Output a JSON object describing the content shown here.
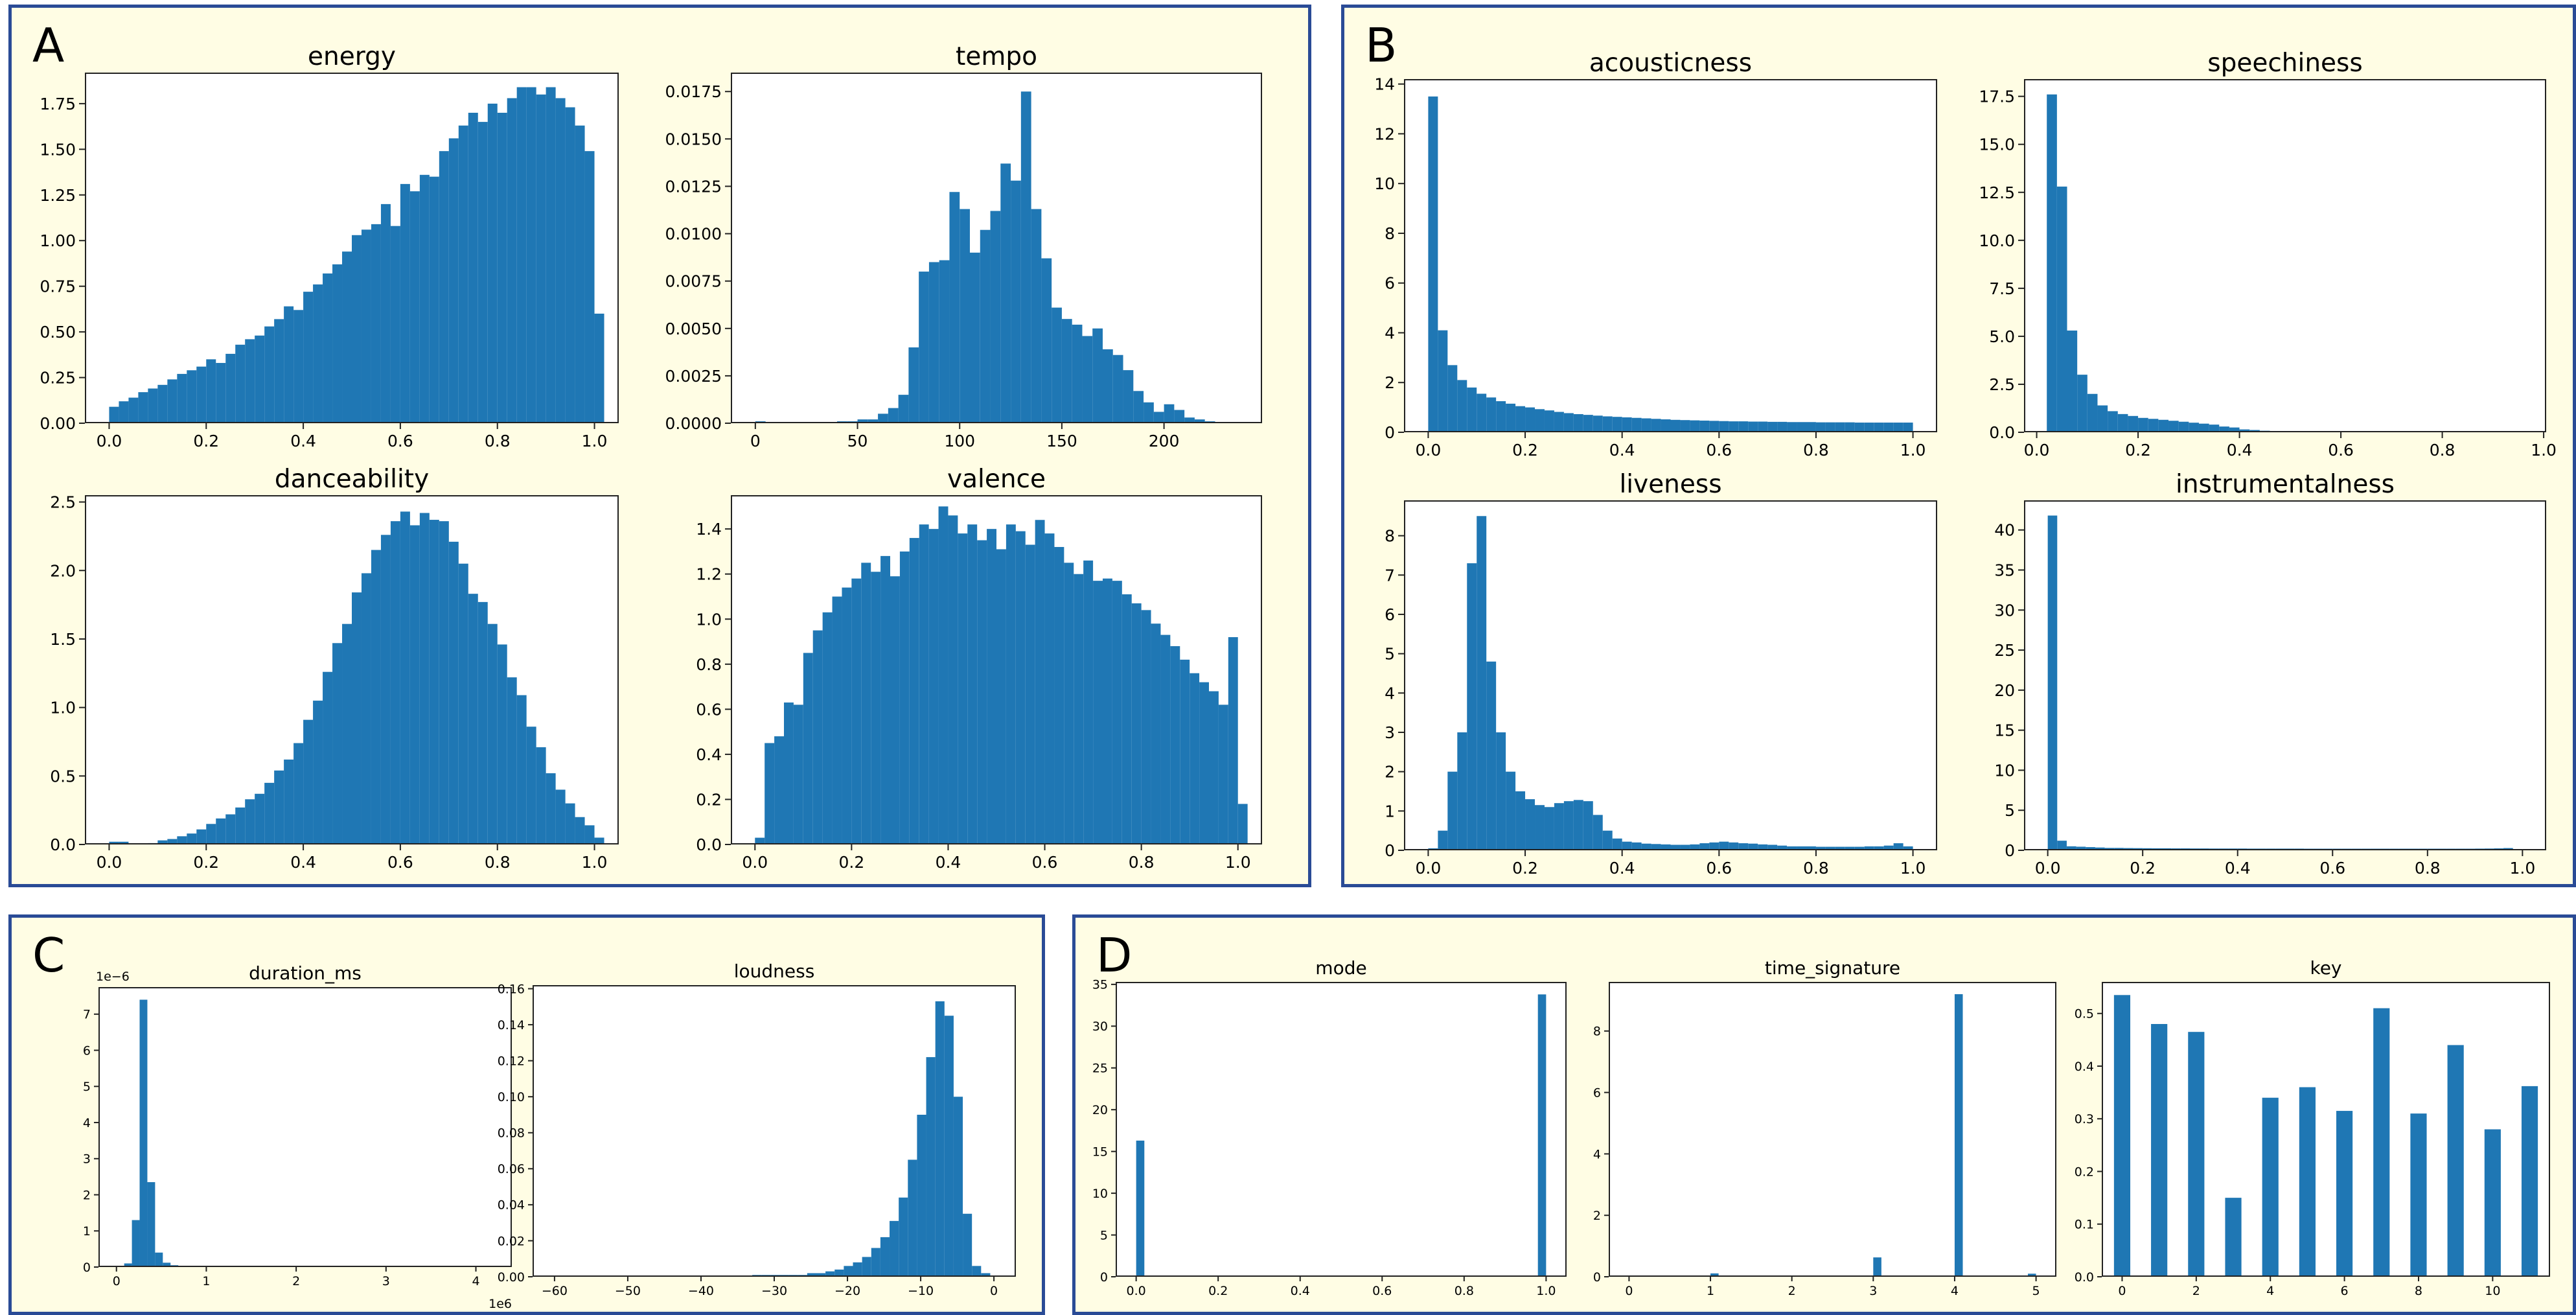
{
  "colors": {
    "bar": "#1f77b4",
    "panel_bg": "#fffde4",
    "panel_border": "#2a4b96"
  },
  "panels": [
    {
      "id": "A",
      "label": "A"
    },
    {
      "id": "B",
      "label": "B"
    },
    {
      "id": "C",
      "label": "C"
    },
    {
      "id": "D",
      "label": "D"
    }
  ],
  "chart_data": [
    {
      "panel": "A",
      "type": "bar",
      "title": "energy",
      "xlim": [
        -0.05,
        1.05
      ],
      "ylim": [
        0,
        1.92
      ],
      "xticks": [
        0.0,
        0.2,
        0.4,
        0.6,
        0.8,
        1.0
      ],
      "xtick_labels": [
        "0.0",
        "0.2",
        "0.4",
        "0.6",
        "0.8",
        "1.0"
      ],
      "yticks": [
        0,
        0.25,
        0.5,
        0.75,
        1.0,
        1.25,
        1.5,
        1.75
      ],
      "ytick_labels": [
        "0.00",
        "0.25",
        "0.50",
        "0.75",
        "1.00",
        "1.25",
        "1.50",
        "1.75"
      ],
      "bin_start": 0.0,
      "bin_width": 0.02,
      "values": [
        0.09,
        0.12,
        0.14,
        0.17,
        0.19,
        0.21,
        0.24,
        0.27,
        0.29,
        0.31,
        0.35,
        0.33,
        0.38,
        0.43,
        0.46,
        0.48,
        0.53,
        0.57,
        0.64,
        0.62,
        0.72,
        0.76,
        0.82,
        0.87,
        0.94,
        1.03,
        1.06,
        1.09,
        1.2,
        1.08,
        1.31,
        1.27,
        1.36,
        1.35,
        1.49,
        1.56,
        1.63,
        1.7,
        1.65,
        1.75,
        1.7,
        1.78,
        1.84,
        1.84,
        1.8,
        1.84,
        1.78,
        1.73,
        1.63,
        1.49,
        0.6
      ]
    },
    {
      "panel": "A",
      "type": "bar",
      "title": "tempo",
      "xlim": [
        -12,
        248
      ],
      "ylim": [
        0,
        0.0185
      ],
      "xticks": [
        0,
        50,
        100,
        150,
        200
      ],
      "xtick_labels": [
        "0",
        "50",
        "100",
        "150",
        "200"
      ],
      "yticks": [
        0,
        0.0025,
        0.005,
        0.0075,
        0.01,
        0.0125,
        0.015,
        0.0175
      ],
      "ytick_labels": [
        "0.0000",
        "0.0025",
        "0.0050",
        "0.0075",
        "0.0100",
        "0.0125",
        "0.0150",
        "0.0175"
      ],
      "bin_start": 0,
      "bin_width": 5,
      "values": [
        0.0001,
        0,
        0,
        0,
        0,
        0,
        0,
        0,
        0.0001,
        0.0001,
        0.0002,
        0.0002,
        0.0005,
        0.0008,
        0.0015,
        0.004,
        0.008,
        0.0085,
        0.0086,
        0.0122,
        0.0113,
        0.009,
        0.0102,
        0.0112,
        0.0137,
        0.0128,
        0.0175,
        0.0113,
        0.0087,
        0.0061,
        0.0055,
        0.0052,
        0.0046,
        0.005,
        0.0039,
        0.0036,
        0.0028,
        0.0017,
        0.0011,
        0.0006,
        0.001,
        0.0007,
        0.0003,
        0.0002,
        0.0001
      ]
    },
    {
      "panel": "A",
      "type": "bar",
      "title": "danceability",
      "xlim": [
        -0.05,
        1.05
      ],
      "ylim": [
        0,
        2.55
      ],
      "xticks": [
        0.0,
        0.2,
        0.4,
        0.6,
        0.8,
        1.0
      ],
      "xtick_labels": [
        "0.0",
        "0.2",
        "0.4",
        "0.6",
        "0.8",
        "1.0"
      ],
      "yticks": [
        0,
        0.5,
        1.0,
        1.5,
        2.0,
        2.5
      ],
      "ytick_labels": [
        "0.0",
        "0.5",
        "1.0",
        "1.5",
        "2.0",
        "2.5"
      ],
      "bin_start": 0.0,
      "bin_width": 0.02,
      "values": [
        0.02,
        0.02,
        0,
        0,
        0.01,
        0.03,
        0.04,
        0.06,
        0.08,
        0.11,
        0.15,
        0.19,
        0.22,
        0.27,
        0.33,
        0.37,
        0.45,
        0.54,
        0.62,
        0.74,
        0.91,
        1.05,
        1.26,
        1.47,
        1.61,
        1.84,
        1.98,
        2.15,
        2.26,
        2.36,
        2.43,
        2.33,
        2.42,
        2.37,
        2.36,
        2.21,
        2.05,
        1.83,
        1.77,
        1.61,
        1.46,
        1.22,
        1.09,
        0.86,
        0.71,
        0.52,
        0.4,
        0.3,
        0.2,
        0.14,
        0.05
      ]
    },
    {
      "panel": "A",
      "type": "bar",
      "title": "valence",
      "xlim": [
        -0.05,
        1.05
      ],
      "ylim": [
        0,
        1.55
      ],
      "xticks": [
        0.0,
        0.2,
        0.4,
        0.6,
        0.8,
        1.0
      ],
      "xtick_labels": [
        "0.0",
        "0.2",
        "0.4",
        "0.6",
        "0.8",
        "1.0"
      ],
      "yticks": [
        0,
        0.2,
        0.4,
        0.6,
        0.8,
        1.0,
        1.2,
        1.4
      ],
      "ytick_labels": [
        "0.0",
        "0.2",
        "0.4",
        "0.6",
        "0.8",
        "1.0",
        "1.2",
        "1.4"
      ],
      "bin_start": 0.0,
      "bin_width": 0.02,
      "values": [
        0.03,
        0.45,
        0.48,
        0.63,
        0.62,
        0.85,
        0.95,
        1.03,
        1.1,
        1.14,
        1.18,
        1.25,
        1.21,
        1.28,
        1.19,
        1.3,
        1.36,
        1.42,
        1.4,
        1.5,
        1.46,
        1.38,
        1.42,
        1.35,
        1.4,
        1.31,
        1.42,
        1.39,
        1.33,
        1.44,
        1.38,
        1.32,
        1.25,
        1.2,
        1.26,
        1.17,
        1.18,
        1.17,
        1.11,
        1.07,
        1.04,
        0.98,
        0.93,
        0.88,
        0.82,
        0.76,
        0.72,
        0.68,
        0.62,
        0.92,
        0.18
      ]
    },
    {
      "panel": "B",
      "type": "bar",
      "title": "acousticness",
      "xlim": [
        -0.05,
        1.05
      ],
      "ylim": [
        0,
        14.2
      ],
      "xticks": [
        0.0,
        0.2,
        0.4,
        0.6,
        0.8,
        1.0
      ],
      "xtick_labels": [
        "0.0",
        "0.2",
        "0.4",
        "0.6",
        "0.8",
        "1.0"
      ],
      "yticks": [
        0,
        2,
        4,
        6,
        8,
        10,
        12,
        14
      ],
      "ytick_labels": [
        "0",
        "2",
        "4",
        "6",
        "8",
        "10",
        "12",
        "14"
      ],
      "bin_start": 0.0,
      "bin_width": 0.02,
      "values": [
        13.5,
        4.1,
        2.7,
        2.1,
        1.8,
        1.55,
        1.4,
        1.25,
        1.15,
        1.05,
        1.0,
        0.93,
        0.88,
        0.82,
        0.77,
        0.73,
        0.7,
        0.67,
        0.64,
        0.62,
        0.6,
        0.58,
        0.56,
        0.54,
        0.52,
        0.5,
        0.49,
        0.48,
        0.47,
        0.46,
        0.45,
        0.44,
        0.44,
        0.43,
        0.43,
        0.42,
        0.42,
        0.41,
        0.41,
        0.41,
        0.4,
        0.4,
        0.4,
        0.4,
        0.39,
        0.39,
        0.39,
        0.39,
        0.39,
        0.39
      ]
    },
    {
      "panel": "B",
      "type": "bar",
      "title": "speechiness",
      "xlim": [
        -0.025,
        1.005
      ],
      "ylim": [
        0,
        18.4
      ],
      "xticks": [
        0.0,
        0.2,
        0.4,
        0.6,
        0.8,
        1.0
      ],
      "xtick_labels": [
        "0.0",
        "0.2",
        "0.4",
        "0.6",
        "0.8",
        "1.0"
      ],
      "yticks": [
        0,
        2.5,
        5.0,
        7.5,
        10.0,
        12.5,
        15.0,
        17.5
      ],
      "ytick_labels": [
        "0.0",
        "2.5",
        "5.0",
        "7.5",
        "10.0",
        "12.5",
        "15.0",
        "17.5"
      ],
      "bin_start": 0.02,
      "bin_width": 0.02,
      "values": [
        17.6,
        12.8,
        5.3,
        3.0,
        2.0,
        1.4,
        1.1,
        0.95,
        0.85,
        0.75,
        0.7,
        0.65,
        0.6,
        0.55,
        0.5,
        0.45,
        0.4,
        0.3,
        0.25,
        0.15,
        0.12,
        0.08,
        0.06,
        0.04,
        0.03,
        0.02,
        0.02,
        0.02,
        0.01,
        0.01,
        0.01,
        0.01,
        0.01,
        0.01,
        0.01,
        0.01,
        0.01,
        0.01,
        0.01,
        0.01,
        0.01,
        0.01,
        0.01,
        0.01,
        0.01,
        0.01,
        0.01,
        0.01,
        0.01
      ]
    },
    {
      "panel": "B",
      "type": "bar",
      "title": "liveness",
      "xlim": [
        -0.05,
        1.05
      ],
      "ylim": [
        0,
        8.9
      ],
      "xticks": [
        0.0,
        0.2,
        0.4,
        0.6,
        0.8,
        1.0
      ],
      "xtick_labels": [
        "0.0",
        "0.2",
        "0.4",
        "0.6",
        "0.8",
        "1.0"
      ],
      "yticks": [
        0,
        1,
        2,
        3,
        4,
        5,
        6,
        7,
        8
      ],
      "ytick_labels": [
        "0",
        "1",
        "2",
        "3",
        "4",
        "5",
        "6",
        "7",
        "8"
      ],
      "bin_start": 0.0,
      "bin_width": 0.02,
      "values": [
        0.05,
        0.5,
        2.0,
        3.0,
        7.3,
        8.5,
        4.8,
        3.0,
        2.0,
        1.5,
        1.3,
        1.15,
        1.1,
        1.2,
        1.25,
        1.28,
        1.25,
        0.9,
        0.5,
        0.3,
        0.22,
        0.2,
        0.17,
        0.16,
        0.15,
        0.14,
        0.14,
        0.15,
        0.18,
        0.2,
        0.22,
        0.2,
        0.18,
        0.17,
        0.15,
        0.14,
        0.12,
        0.1,
        0.1,
        0.1,
        0.09,
        0.09,
        0.09,
        0.09,
        0.09,
        0.1,
        0.1,
        0.12,
        0.18,
        0.1
      ]
    },
    {
      "panel": "B",
      "type": "bar",
      "title": "instrumentalness",
      "xlim": [
        -0.05,
        1.05
      ],
      "ylim": [
        0,
        43.7
      ],
      "xticks": [
        0.0,
        0.2,
        0.4,
        0.6,
        0.8,
        1.0
      ],
      "xtick_labels": [
        "0.0",
        "0.2",
        "0.4",
        "0.6",
        "0.8",
        "1.0"
      ],
      "yticks": [
        0,
        5,
        10,
        15,
        20,
        25,
        30,
        35,
        40
      ],
      "ytick_labels": [
        "0",
        "5",
        "10",
        "15",
        "20",
        "25",
        "30",
        "35",
        "40"
      ],
      "bin_start": 0.0,
      "bin_width": 0.02,
      "values": [
        41.8,
        1.2,
        0.5,
        0.45,
        0.4,
        0.35,
        0.3,
        0.3,
        0.28,
        0.27,
        0.26,
        0.25,
        0.25,
        0.24,
        0.24,
        0.23,
        0.23,
        0.22,
        0.22,
        0.22,
        0.22,
        0.21,
        0.21,
        0.21,
        0.21,
        0.21,
        0.21,
        0.2,
        0.2,
        0.2,
        0.2,
        0.2,
        0.2,
        0.2,
        0.2,
        0.2,
        0.2,
        0.2,
        0.2,
        0.2,
        0.2,
        0.2,
        0.2,
        0.2,
        0.2,
        0.21,
        0.22,
        0.24,
        0.28
      ]
    },
    {
      "panel": "C",
      "type": "bar",
      "title": "duration_ms",
      "xlim": [
        -0.2,
        4.4
      ],
      "ylim": [
        0,
        7.75
      ],
      "xticks": [
        0,
        1,
        2,
        3,
        4
      ],
      "xtick_labels": [
        "0",
        "1",
        "2",
        "3",
        "4"
      ],
      "yticks": [
        0,
        1,
        2,
        3,
        4,
        5,
        6,
        7
      ],
      "ytick_labels": [
        "0",
        "1",
        "2",
        "3",
        "4",
        "5",
        "6",
        "7"
      ],
      "x_multiplier": "1e6",
      "y_multiplier": "1e−6",
      "bin_start": 0.0,
      "bin_width": 0.086,
      "values": [
        0.03,
        0.1,
        1.3,
        7.4,
        2.35,
        0.4,
        0.12,
        0.05,
        0.03,
        0.02,
        0.01,
        0.01,
        0.01,
        0.01,
        0.01
      ]
    },
    {
      "panel": "C",
      "type": "bar",
      "title": "loudness",
      "xlim": [
        -63,
        3
      ],
      "ylim": [
        0,
        0.162
      ],
      "xticks": [
        -60,
        -50,
        -40,
        -30,
        -20,
        -10,
        0
      ],
      "xtick_labels": [
        "−60",
        "−50",
        "−40",
        "−30",
        "−20",
        "−10",
        "0"
      ],
      "yticks": [
        0,
        0.02,
        0.04,
        0.06,
        0.08,
        0.1,
        0.12,
        0.14,
        0.16
      ],
      "ytick_labels": [
        "0.00",
        "0.02",
        "0.04",
        "0.06",
        "0.08",
        "0.10",
        "0.12",
        "0.14",
        "0.16"
      ],
      "bin_start": -33,
      "bin_width": 1.25,
      "values": [
        0.001,
        0.001,
        0.001,
        0.001,
        0.001,
        0.001,
        0.002,
        0.002,
        0.003,
        0.004,
        0.006,
        0.008,
        0.011,
        0.016,
        0.022,
        0.031,
        0.044,
        0.065,
        0.09,
        0.122,
        0.153,
        0.145,
        0.1,
        0.035,
        0.006,
        0.002
      ]
    },
    {
      "panel": "D",
      "type": "bar",
      "title": "mode",
      "xlim": [
        -0.05,
        1.05
      ],
      "ylim": [
        0,
        35.3
      ],
      "xticks": [
        0.0,
        0.2,
        0.4,
        0.6,
        0.8,
        1.0
      ],
      "xtick_labels": [
        "0.0",
        "0.2",
        "0.4",
        "0.6",
        "0.8",
        "1.0"
      ],
      "yticks": [
        0,
        5,
        10,
        15,
        20,
        25,
        30,
        35
      ],
      "ytick_labels": [
        "0",
        "5",
        "10",
        "15",
        "20",
        "25",
        "30",
        "35"
      ],
      "bin_start": 0.0,
      "bin_width": 0.02,
      "values": [
        16.3,
        0,
        0,
        0,
        0,
        0,
        0,
        0,
        0,
        0,
        0,
        0,
        0,
        0,
        0,
        0,
        0,
        0,
        0,
        0,
        0,
        0,
        0,
        0,
        0,
        0,
        0,
        0,
        0,
        0,
        0,
        0,
        0,
        0,
        0,
        0,
        0,
        0,
        0,
        0,
        0,
        0,
        0,
        0,
        0,
        0,
        0,
        0,
        0,
        33.8
      ]
    },
    {
      "panel": "D",
      "type": "bar",
      "title": "time_signature",
      "xlim": [
        -0.25,
        5.25
      ],
      "ylim": [
        0,
        9.6
      ],
      "xticks": [
        0,
        1,
        2,
        3,
        4,
        5
      ],
      "xtick_labels": [
        "0",
        "1",
        "2",
        "3",
        "4",
        "5"
      ],
      "yticks": [
        0,
        2,
        4,
        6,
        8
      ],
      "ytick_labels": [
        "0",
        "2",
        "4",
        "6",
        "8"
      ],
      "bin_start": 0,
      "bin_width": 0.1,
      "values": [
        0.02,
        0,
        0,
        0,
        0,
        0,
        0,
        0,
        0,
        0,
        0.11,
        0,
        0,
        0,
        0,
        0,
        0,
        0,
        0,
        0,
        0,
        0,
        0,
        0,
        0,
        0,
        0,
        0,
        0,
        0,
        0.63,
        0,
        0,
        0,
        0,
        0,
        0,
        0,
        0,
        0,
        9.2,
        0,
        0,
        0,
        0,
        0,
        0,
        0,
        0,
        0.1
      ]
    },
    {
      "panel": "D",
      "type": "bar",
      "title": "key",
      "xlim": [
        -0.55,
        11.55
      ],
      "ylim": [
        0,
        0.56
      ],
      "xticks": [
        0,
        2,
        4,
        6,
        8,
        10
      ],
      "xtick_labels": [
        "0",
        "2",
        "4",
        "6",
        "8",
        "10"
      ],
      "yticks": [
        0,
        0.1,
        0.2,
        0.3,
        0.4,
        0.5
      ],
      "ytick_labels": [
        "0.0",
        "0.1",
        "0.2",
        "0.3",
        "0.4",
        "0.5"
      ],
      "bar_x": [
        0,
        1,
        2,
        3,
        4,
        5,
        6,
        7,
        8,
        9,
        10,
        11
      ],
      "bar_width": 0.44,
      "values": [
        0.535,
        0.48,
        0.465,
        0.15,
        0.34,
        0.36,
        0.315,
        0.51,
        0.31,
        0.44,
        0.28,
        0.362
      ]
    }
  ]
}
